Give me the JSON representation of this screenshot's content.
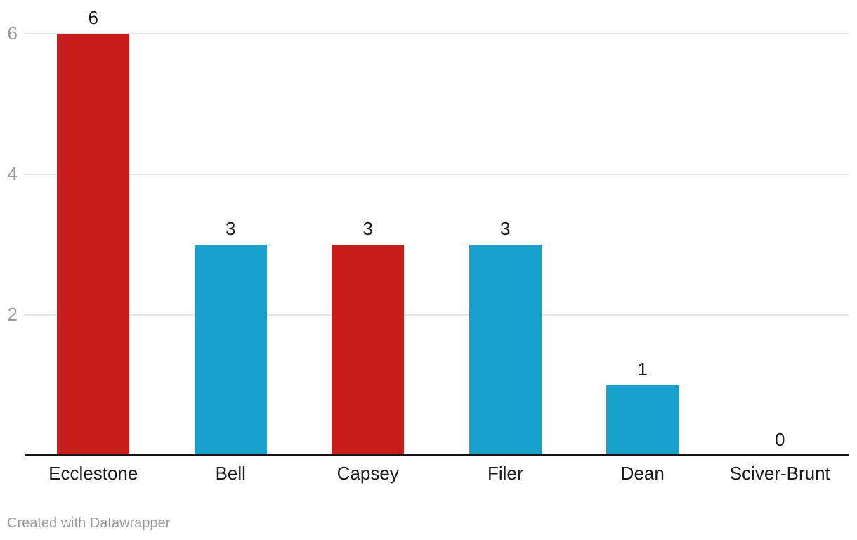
{
  "chart_data": {
    "type": "bar",
    "title": "",
    "xlabel": "",
    "ylabel": "",
    "categories": [
      "Ecclestone",
      "Bell",
      "Capsey",
      "Filer",
      "Dean",
      "Sciver-Brunt"
    ],
    "values": [
      6,
      3,
      3,
      3,
      1,
      0
    ],
    "value_labels": [
      "6",
      "3",
      "3",
      "3",
      "1",
      "0"
    ],
    "bar_colors": [
      "#c71e1d",
      "#18a1cd",
      "#c71e1d",
      "#18a1cd",
      "#18a1cd",
      "#18a1cd"
    ],
    "yticks": [
      2,
      4,
      6
    ],
    "ytick_labels": [
      "2",
      "4",
      "6"
    ],
    "ylim": [
      0,
      6.2
    ],
    "grid": true,
    "legend": "none"
  },
  "colors": {
    "red": "#c71e1d",
    "blue": "#18a1cd",
    "gridline": "#e4e4e4",
    "axis_tick_text": "#9a9a9a",
    "label_text": "#1a1a1a",
    "baseline": "#141414",
    "background": "#ffffff",
    "attribution_text": "#9a9a9a"
  },
  "footer": {
    "text": "Created with Datawrapper"
  }
}
